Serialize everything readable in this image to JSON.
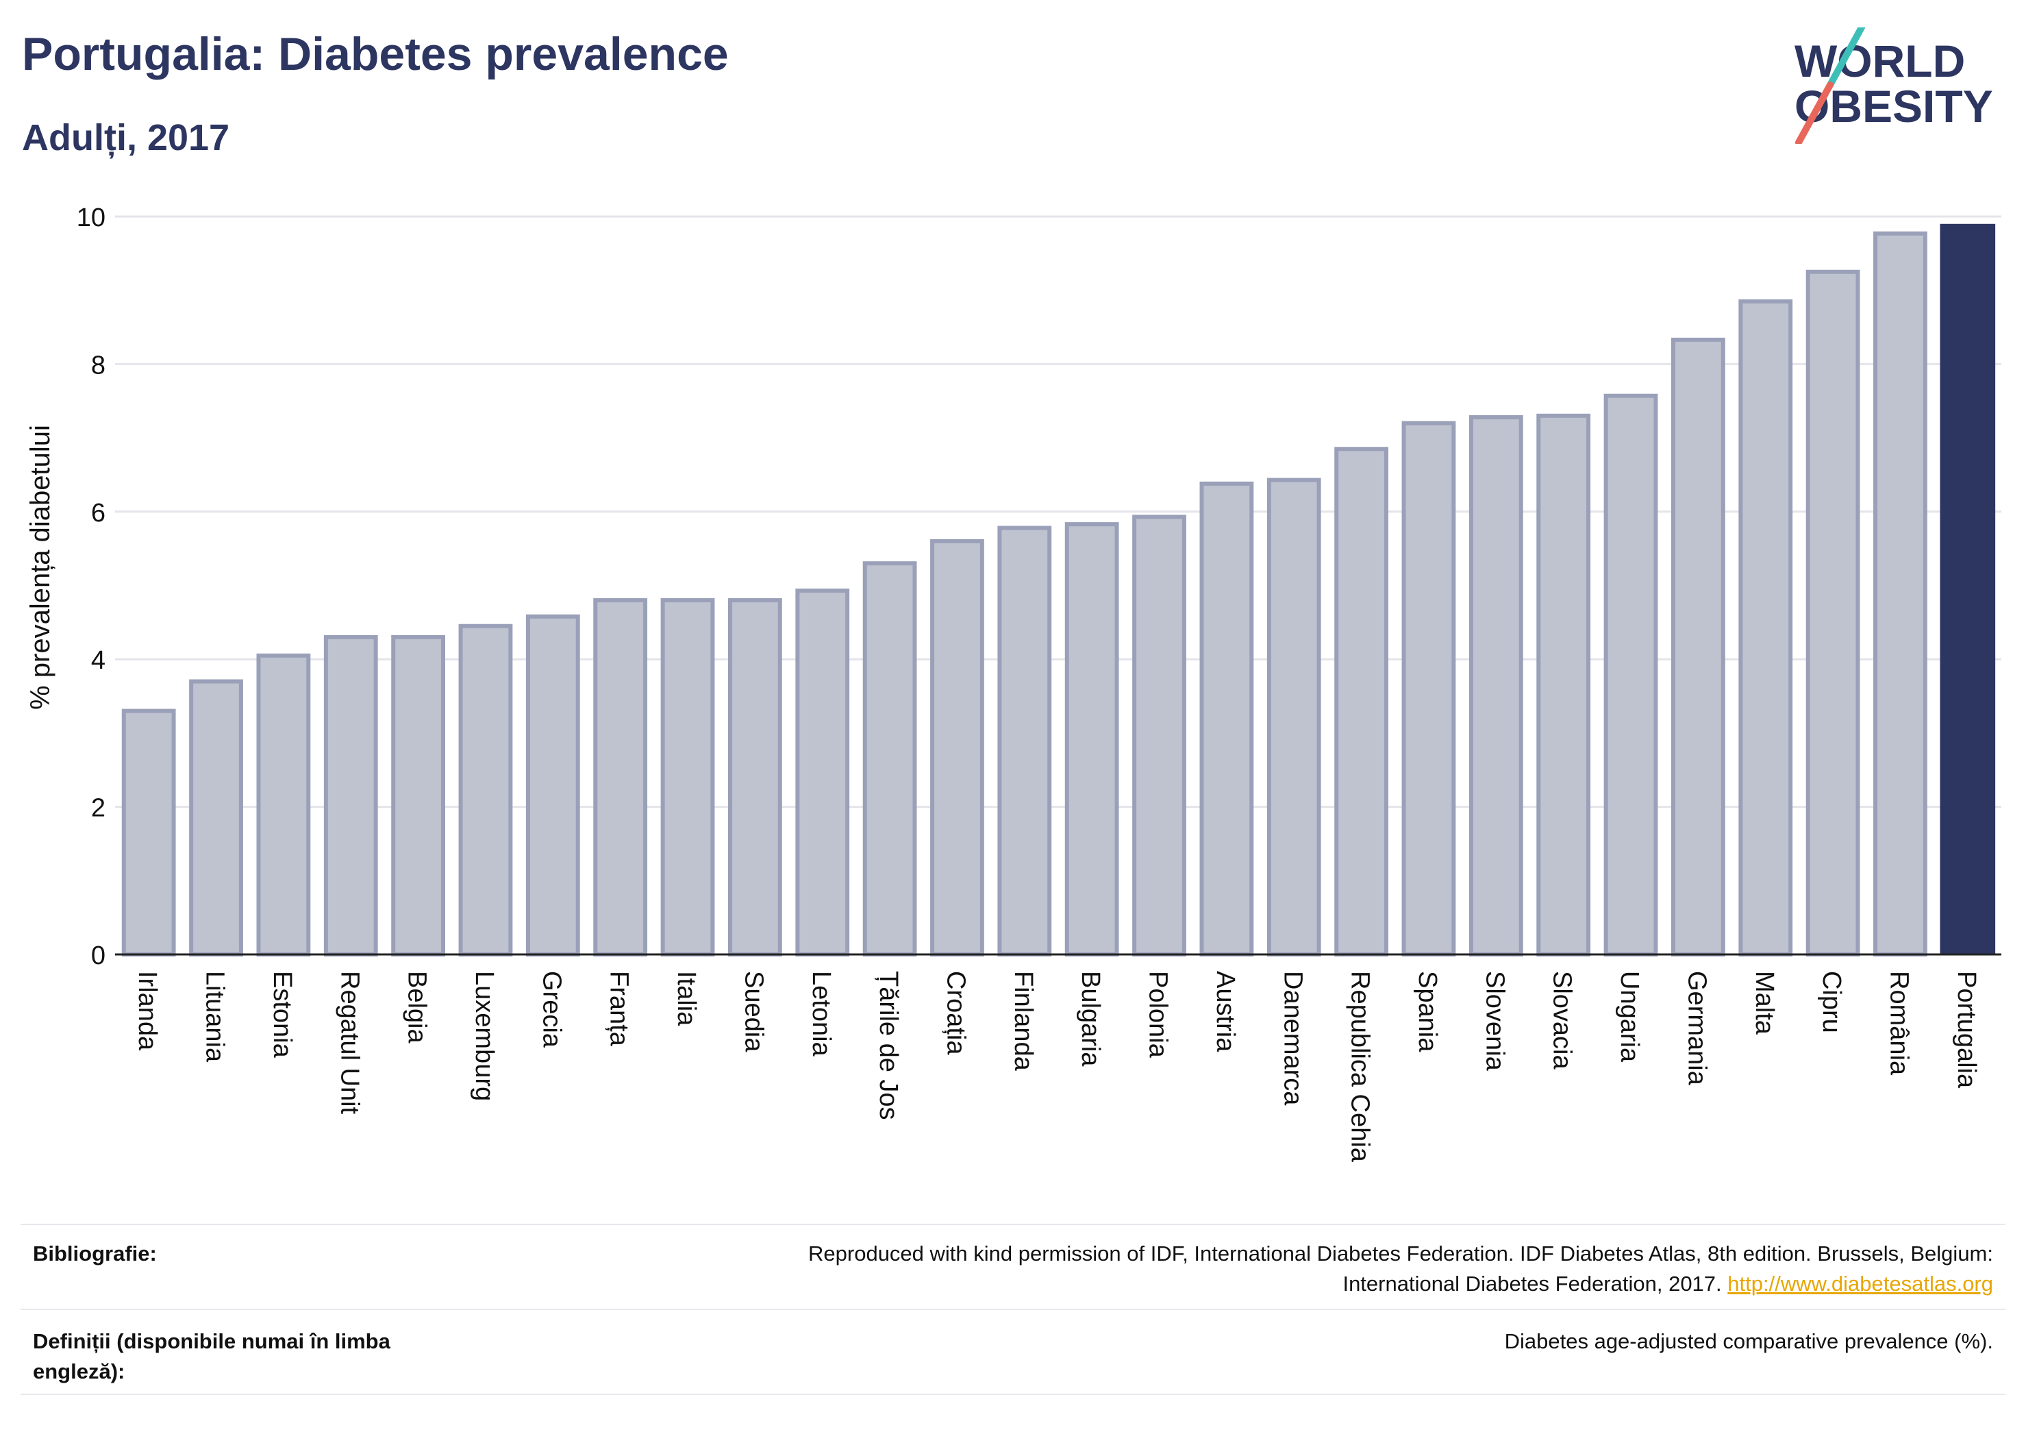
{
  "header": {
    "title": "Portugalia: Diabetes prevalence",
    "subtitle": "Adulți, 2017"
  },
  "logo": {
    "line1": "WORLD",
    "line2": "OBESITY",
    "accent_teal": "#3dbfb8",
    "accent_red": "#e8675a",
    "text_color": "#2d3561"
  },
  "chart_data": {
    "type": "bar",
    "ylabel": "% prevalența diabetului",
    "xlabel": "",
    "ylim": [
      0,
      10
    ],
    "yticks": [
      0,
      2,
      4,
      6,
      8,
      10
    ],
    "grid": true,
    "highlight_category": "Portugalia",
    "colors": {
      "bar": "#bfc2cf",
      "bar_border": "#9aa0b8",
      "highlight": "#2d3561"
    },
    "categories": [
      "Irlanda",
      "Lituania",
      "Estonia",
      "Regatul Unit",
      "Belgia",
      "Luxemburg",
      "Grecia",
      "Franța",
      "Italia",
      "Suedia",
      "Letonia",
      "Țările de Jos",
      "Croația",
      "Finlanda",
      "Bulgaria",
      "Polonia",
      "Austria",
      "Danemarca",
      "Republica Cehia",
      "Spania",
      "Slovenia",
      "Slovacia",
      "Ungaria",
      "Germania",
      "Malta",
      "Cipru",
      "România",
      "Portugalia"
    ],
    "values": [
      3.3,
      3.7,
      4.05,
      4.3,
      4.3,
      4.45,
      4.58,
      4.8,
      4.8,
      4.8,
      4.93,
      5.3,
      5.6,
      5.78,
      5.83,
      5.93,
      6.38,
      6.43,
      6.85,
      7.2,
      7.28,
      7.3,
      7.57,
      8.33,
      8.85,
      9.25,
      9.77,
      9.9
    ]
  },
  "footer": {
    "bibliography_label": "Bibliografie:",
    "bibliography_line1": "Reproduced with kind permission of IDF, International Diabetes Federation. IDF Diabetes Atlas, 8th edition. Brussels, Belgium:",
    "bibliography_line2": "International Diabetes Federation, 2017.",
    "bibliography_link": "http://www.diabetesatlas.org",
    "definitions_label_line1": "Definiții (disponibile numai în limba",
    "definitions_label_line2": "engleză):",
    "definitions_text": "Diabetes age-adjusted comparative prevalence (%)."
  }
}
